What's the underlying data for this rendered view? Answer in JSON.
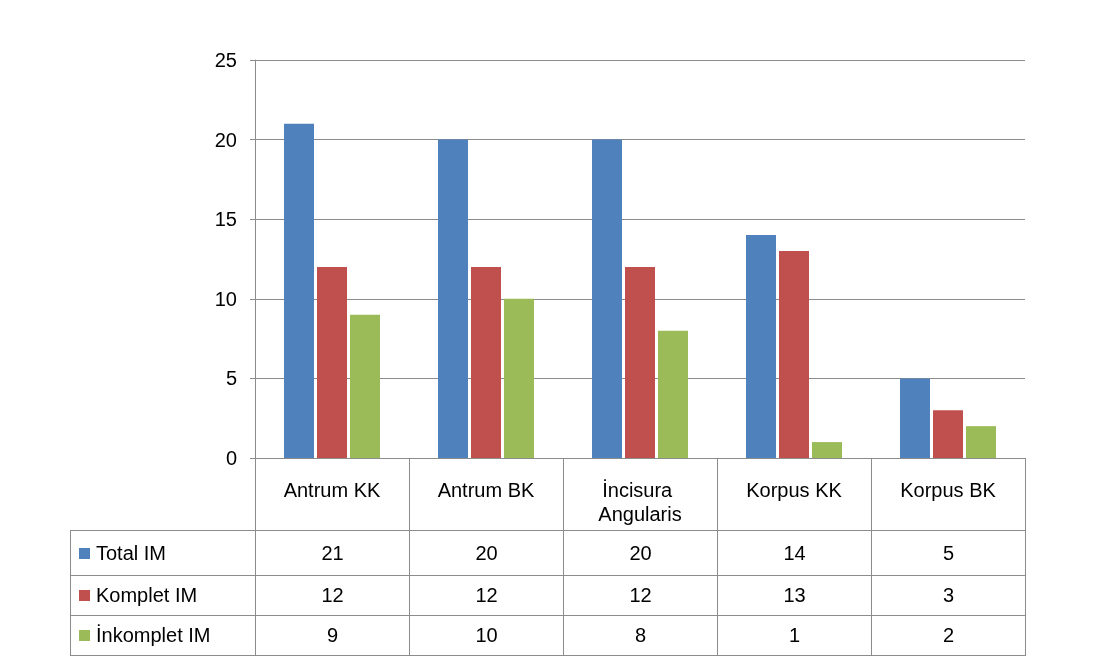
{
  "chart_data": {
    "type": "bar",
    "categories": [
      "Antrum KK",
      "Antrum BK",
      "İncisura Angularis",
      "Korpus KK",
      "Korpus BK"
    ],
    "series": [
      {
        "name": "Total IM",
        "color": "#4f81bd",
        "values": [
          21,
          20,
          20,
          14,
          5
        ]
      },
      {
        "name": "Komplet IM",
        "color": "#c0504d",
        "values": [
          12,
          12,
          12,
          13,
          3
        ]
      },
      {
        "name": "İnkomplet IM",
        "color": "#9bbb59",
        "values": [
          9,
          10,
          8,
          1,
          2
        ]
      }
    ],
    "ylim": [
      0,
      25
    ],
    "yticks": [
      0,
      5,
      10,
      15,
      20,
      25
    ],
    "grid": "y",
    "legend": "bottom left",
    "data_labels": true
  }
}
